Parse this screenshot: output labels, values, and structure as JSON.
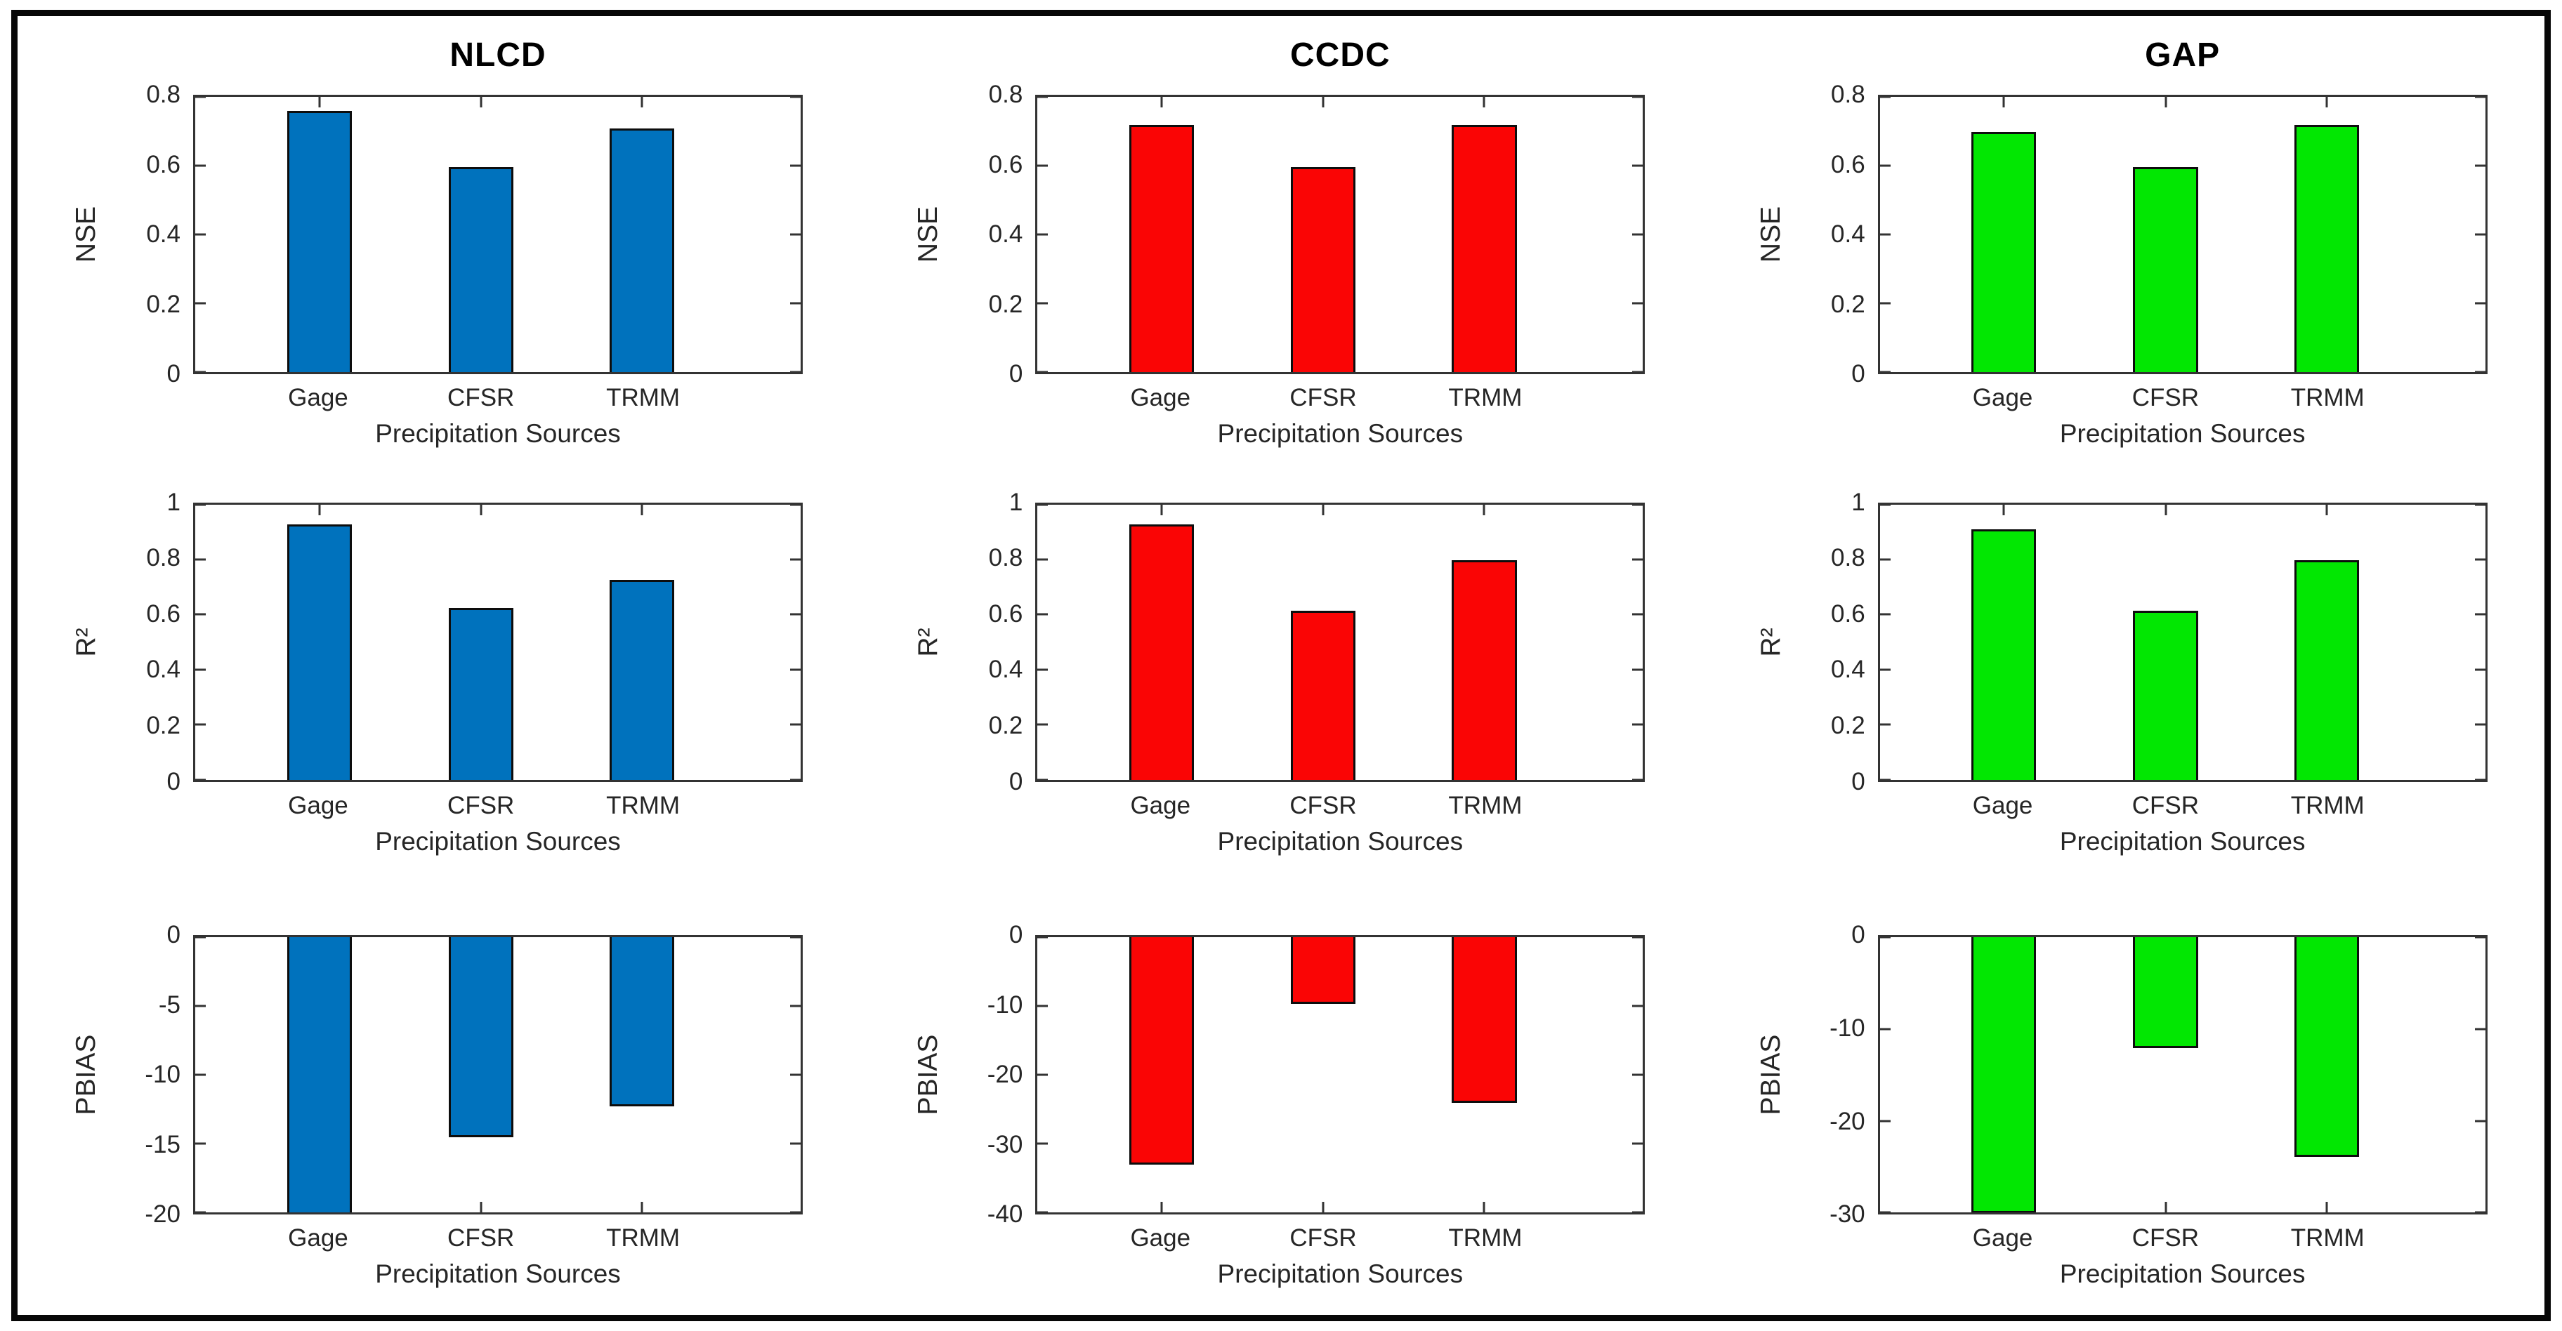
{
  "figure": {
    "column_titles": [
      "NLCD",
      "CCDC",
      "GAP"
    ],
    "row_metrics": [
      "NSE",
      "R²",
      "PBIAS"
    ],
    "categories": [
      "Gage",
      "CFSR",
      "TRMM"
    ],
    "xlabel": "Precipitation Sources",
    "colors": {
      "NLCD": "#0072BD",
      "CCDC": "#FA0505",
      "GAP": "#02E702"
    },
    "bar_edge_color": "#0d0d0d",
    "frame_color": "#070707",
    "background": "#ffffff"
  },
  "chart_data": [
    {
      "id": "nlcd-nse",
      "type": "bar",
      "row": 0,
      "col": 0,
      "title": "NLCD",
      "ylabel": "NSE",
      "xlabel": "Precipitation Sources",
      "categories": [
        "Gage",
        "CFSR",
        "TRMM"
      ],
      "values": [
        0.76,
        0.6,
        0.71
      ],
      "ylim": [
        0,
        0.8
      ],
      "yticks": [
        0,
        0.2,
        0.4,
        0.6,
        0.8
      ],
      "color": "#0072BD",
      "grid": false,
      "legend": null
    },
    {
      "id": "ccdc-nse",
      "type": "bar",
      "row": 0,
      "col": 1,
      "title": "CCDC",
      "ylabel": "NSE",
      "xlabel": "Precipitation Sources",
      "categories": [
        "Gage",
        "CFSR",
        "TRMM"
      ],
      "values": [
        0.72,
        0.6,
        0.72
      ],
      "ylim": [
        0,
        0.8
      ],
      "yticks": [
        0,
        0.2,
        0.4,
        0.6,
        0.8
      ],
      "color": "#FA0505",
      "grid": false,
      "legend": null
    },
    {
      "id": "gap-nse",
      "type": "bar",
      "row": 0,
      "col": 2,
      "title": "GAP",
      "ylabel": "NSE",
      "xlabel": "Precipitation Sources",
      "categories": [
        "Gage",
        "CFSR",
        "TRMM"
      ],
      "values": [
        0.7,
        0.6,
        0.72
      ],
      "ylim": [
        0,
        0.8
      ],
      "yticks": [
        0,
        0.2,
        0.4,
        0.6,
        0.8
      ],
      "color": "#02E702",
      "grid": false,
      "legend": null
    },
    {
      "id": "nlcd-r2",
      "type": "bar",
      "row": 1,
      "col": 0,
      "title": null,
      "ylabel": "R²",
      "xlabel": "Precipitation Sources",
      "categories": [
        "Gage",
        "CFSR",
        "TRMM"
      ],
      "values": [
        0.93,
        0.63,
        0.73
      ],
      "ylim": [
        0,
        1
      ],
      "yticks": [
        0,
        0.2,
        0.4,
        0.6,
        0.8,
        1
      ],
      "color": "#0072BD",
      "grid": false,
      "legend": null
    },
    {
      "id": "ccdc-r2",
      "type": "bar",
      "row": 1,
      "col": 1,
      "title": null,
      "ylabel": "R²",
      "xlabel": "Precipitation Sources",
      "categories": [
        "Gage",
        "CFSR",
        "TRMM"
      ],
      "values": [
        0.93,
        0.62,
        0.8
      ],
      "ylim": [
        0,
        1
      ],
      "yticks": [
        0,
        0.2,
        0.4,
        0.6,
        0.8,
        1
      ],
      "color": "#FA0505",
      "grid": false,
      "legend": null
    },
    {
      "id": "gap-r2",
      "type": "bar",
      "row": 1,
      "col": 2,
      "title": null,
      "ylabel": "R²",
      "xlabel": "Precipitation Sources",
      "categories": [
        "Gage",
        "CFSR",
        "TRMM"
      ],
      "values": [
        0.91,
        0.62,
        0.8
      ],
      "ylim": [
        0,
        1
      ],
      "yticks": [
        0,
        0.2,
        0.4,
        0.6,
        0.8,
        1
      ],
      "color": "#02E702",
      "grid": false,
      "legend": null
    },
    {
      "id": "nlcd-pbias",
      "type": "bar",
      "row": 2,
      "col": 0,
      "title": null,
      "ylabel": "PBIAS",
      "xlabel": "Precipitation Sources",
      "categories": [
        "Gage",
        "CFSR",
        "TRMM"
      ],
      "values": [
        -20,
        -14.3,
        -12.1
      ],
      "clipped": [
        true,
        false,
        false
      ],
      "ylim": [
        -20,
        0
      ],
      "yticks": [
        0,
        -5,
        -10,
        -15,
        -20
      ],
      "color": "#0072BD",
      "grid": false,
      "legend": null
    },
    {
      "id": "ccdc-pbias",
      "type": "bar",
      "row": 2,
      "col": 1,
      "title": null,
      "ylabel": "PBIAS",
      "xlabel": "Precipitation Sources",
      "categories": [
        "Gage",
        "CFSR",
        "TRMM"
      ],
      "values": [
        -32.5,
        -9.5,
        -23.7
      ],
      "clipped": [
        false,
        false,
        false
      ],
      "ylim": [
        -40,
        0
      ],
      "yticks": [
        0,
        -10,
        -20,
        -30,
        -40
      ],
      "color": "#FA0505",
      "grid": false,
      "legend": null
    },
    {
      "id": "gap-pbias",
      "type": "bar",
      "row": 2,
      "col": 2,
      "title": null,
      "ylabel": "PBIAS",
      "xlabel": "Precipitation Sources",
      "categories": [
        "Gage",
        "CFSR",
        "TRMM"
      ],
      "values": [
        -29.6,
        -11.9,
        -23.6
      ],
      "clipped": [
        false,
        false,
        false
      ],
      "ylim": [
        -30,
        0
      ],
      "yticks": [
        0,
        -10,
        -20,
        -30
      ],
      "color": "#02E702",
      "grid": false,
      "legend": null
    }
  ]
}
